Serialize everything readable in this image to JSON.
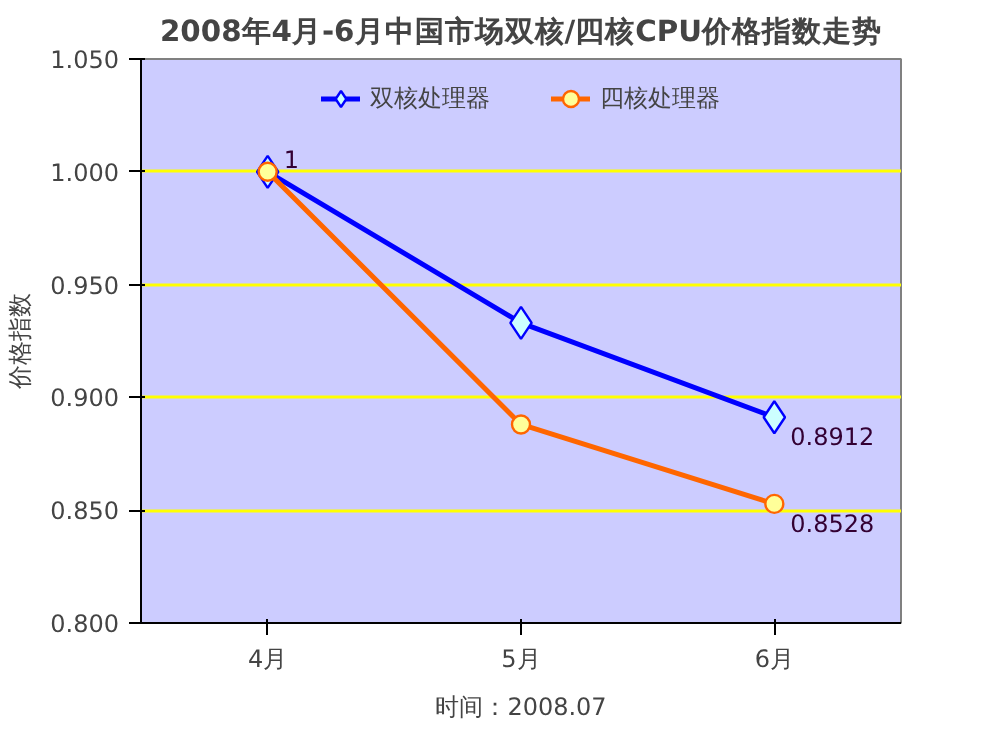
{
  "chart_data": {
    "type": "line",
    "title": "2008年4月-6月中国市场双核/四核CPU价格指数走势",
    "ylabel": "价格指数",
    "categories": [
      "4月",
      "5月",
      "6月"
    ],
    "series": [
      {
        "name": "双核处理器",
        "color": "#0000ff",
        "marker": "diamond",
        "values": [
          1,
          0.933,
          0.8912
        ],
        "value_labels": [
          null,
          null,
          "0.8912"
        ]
      },
      {
        "name": "四核处理器",
        "color": "#ff6600",
        "marker": "circle",
        "values": [
          1,
          0.888,
          0.8528
        ],
        "value_labels": [
          "1",
          null,
          "0.8528"
        ]
      }
    ],
    "ylim": [
      0.8,
      1.05
    ],
    "yticks": [
      {
        "value": 0.8,
        "label": "0.800"
      },
      {
        "value": 0.85,
        "label": "0.850"
      },
      {
        "value": 0.9,
        "label": "0.900"
      },
      {
        "value": 0.95,
        "label": "0.950"
      },
      {
        "value": 1.0,
        "label": "1.000"
      },
      {
        "value": 1.05,
        "label": "1.050"
      }
    ],
    "grid": "y",
    "legend": "top",
    "annotations": [
      "时间：2008.07"
    ]
  }
}
